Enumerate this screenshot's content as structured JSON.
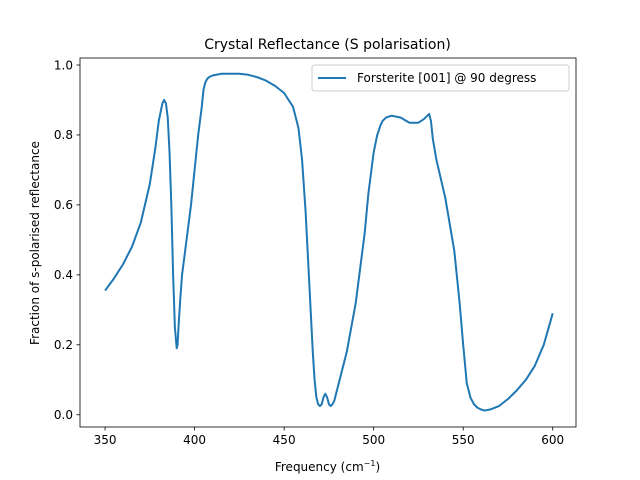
{
  "chart_data": {
    "type": "line",
    "title": "Crystal Reflectance (S polarisation)",
    "xlabel_prefix": "Frequency (cm",
    "xlabel_sup": "−1",
    "xlabel_suffix": ")",
    "ylabel": "Fraction of s-polarised reflectance",
    "xlim": [
      336,
      613
    ],
    "ylim": [
      -0.035,
      1.02
    ],
    "xticks": [
      350,
      400,
      450,
      500,
      550,
      600
    ],
    "xtick_labels": [
      "350",
      "400",
      "450",
      "500",
      "550",
      "600"
    ],
    "yticks": [
      0.0,
      0.2,
      0.4,
      0.6,
      0.8,
      1.0
    ],
    "ytick_labels": [
      "0.0",
      "0.2",
      "0.4",
      "0.6",
      "0.8",
      "1.0"
    ],
    "grid": false,
    "legend_position": "top-right",
    "series": [
      {
        "name": "Forsterite [001] @ 90 degress",
        "color": "#1f77b4",
        "x": [
          350,
          355,
          360,
          365,
          370,
          375,
          378,
          380,
          382,
          383,
          384,
          385,
          386,
          387,
          388,
          389,
          390,
          390.5,
          391,
          392,
          393,
          395,
          398,
          400,
          402,
          404,
          405,
          406,
          407,
          408,
          410,
          415,
          420,
          425,
          430,
          435,
          440,
          445,
          450,
          455,
          458,
          460,
          462,
          464,
          466,
          467,
          468,
          469,
          470,
          471,
          472,
          473,
          474,
          475,
          476,
          477,
          478,
          479,
          480,
          485,
          490,
          495,
          497,
          500,
          502,
          504,
          505,
          507,
          510,
          515,
          520,
          525,
          528,
          530,
          531,
          532,
          533,
          535,
          540,
          545,
          548,
          550,
          552,
          554,
          556,
          558,
          560,
          562,
          565,
          570,
          575,
          580,
          585,
          590,
          595,
          600
        ],
        "y": [
          0.355,
          0.39,
          0.43,
          0.48,
          0.55,
          0.66,
          0.76,
          0.84,
          0.89,
          0.9,
          0.89,
          0.85,
          0.75,
          0.6,
          0.4,
          0.25,
          0.19,
          0.2,
          0.25,
          0.33,
          0.4,
          0.48,
          0.6,
          0.7,
          0.8,
          0.88,
          0.93,
          0.95,
          0.96,
          0.965,
          0.97,
          0.975,
          0.975,
          0.975,
          0.972,
          0.965,
          0.955,
          0.94,
          0.92,
          0.88,
          0.82,
          0.73,
          0.58,
          0.38,
          0.18,
          0.1,
          0.05,
          0.03,
          0.025,
          0.03,
          0.05,
          0.06,
          0.05,
          0.03,
          0.025,
          0.03,
          0.04,
          0.06,
          0.08,
          0.18,
          0.32,
          0.52,
          0.63,
          0.75,
          0.8,
          0.83,
          0.84,
          0.85,
          0.855,
          0.85,
          0.835,
          0.835,
          0.845,
          0.855,
          0.86,
          0.84,
          0.79,
          0.73,
          0.62,
          0.47,
          0.32,
          0.2,
          0.09,
          0.05,
          0.03,
          0.02,
          0.015,
          0.012,
          0.015,
          0.025,
          0.045,
          0.07,
          0.1,
          0.14,
          0.2,
          0.29
        ]
      }
    ]
  }
}
